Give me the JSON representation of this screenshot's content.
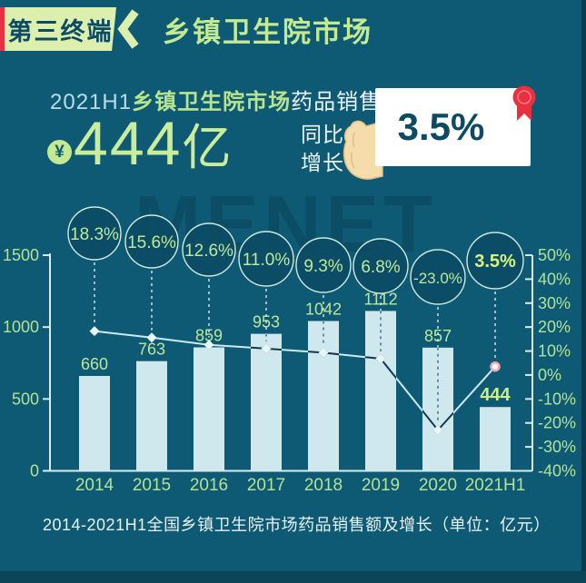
{
  "colors": {
    "background": "#0e5a74",
    "badge_bg": "#dcefad",
    "deep_teal": "#0d4a63",
    "accent_red": "#e8313f",
    "title_green": "#c3ea92",
    "bar": "#cfe8ee",
    "value_label": "#bce79b",
    "axis": "#d8ecee",
    "axis_label": "#b2e295",
    "line": "#cde9f1",
    "marker_dark": "#14374e",
    "marker_light": "#e9f6f8",
    "marker_final_fill": "#ffffff",
    "marker_final_ring": "#f0a7b4",
    "circle_fill": "#0b4b64",
    "circle_border": "#cfe9dd",
    "circle_label": "#bfe998",
    "circle_label_final": "#d9f47e"
  },
  "header": {
    "badge_label": "第三终端",
    "title": "乡镇卫生院市场"
  },
  "highlight": {
    "headline_prefix": "2021H1",
    "headline_market": "乡镇卫生院市场",
    "headline_suffix": "药品销售额达",
    "currency_symbol": "¥",
    "amount_value": "444",
    "amount_unit": "亿",
    "yoy_label_line1": "同比",
    "yoy_label_line2": "增长",
    "yoy_value": "3.5%"
  },
  "watermark": "MENET",
  "chart_data": {
    "type": "bar+line",
    "title": "2014-2021H1全国乡镇卫生院市场药品销售额及增长（单位：亿元）",
    "categories": [
      "2014",
      "2015",
      "2016",
      "2017",
      "2018",
      "2019",
      "2020",
      "2021H1"
    ],
    "series": [
      {
        "name": "药品销售额（亿元）",
        "type": "bar",
        "values": [
          660,
          763,
          859,
          953,
          1042,
          1112,
          857,
          444
        ]
      },
      {
        "name": "同比增长率",
        "type": "line",
        "values": [
          18.3,
          15.6,
          12.6,
          11.0,
          9.3,
          6.8,
          -23.0,
          3.5
        ],
        "labels": [
          "18.3%",
          "15.6%",
          "12.6%",
          "11.0%",
          "9.3%",
          "6.8%",
          "-23.0%",
          "3.5%"
        ]
      }
    ],
    "left_axis": {
      "min": 0,
      "max": 1500,
      "tick_labels": [
        "0",
        "500",
        "1000",
        "1500"
      ]
    },
    "right_axis": {
      "min": -40,
      "max": 50,
      "tick_labels": [
        "50%",
        "40%",
        "30%",
        "20%",
        "10%",
        "0%",
        "-10%",
        "-20%",
        "-30%",
        "-40%"
      ]
    },
    "legend": "none",
    "grid": false,
    "caption": "2014-2021H1全国乡镇卫生院市场药品销售额及增长（单位：亿元）"
  }
}
